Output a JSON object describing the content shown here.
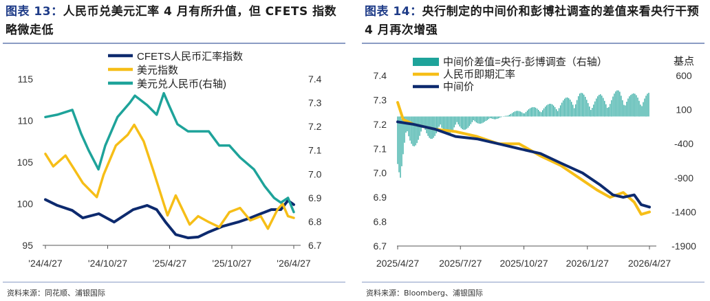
{
  "colors": {
    "navy": "#0d2a6e",
    "gold": "#f6be17",
    "teal": "#1ea39a",
    "title_blue": "#1f3c88",
    "rule": "#8a9bc4"
  },
  "left": {
    "fig_label": "图表 13：",
    "title": "人民币兑美元汇率 4 月有所升值，但 CFETS 指数略微走低",
    "source": "资料来源：同花顺、浦银国际",
    "chart_data": {
      "type": "line",
      "x_ticks": [
        "'24/4/27",
        "'24/10/27",
        "'25/4/27",
        "'25/10/27",
        "'26/4/27"
      ],
      "y_left": {
        "range": [
          95,
          115
        ],
        "ticks": [
          95,
          100,
          105,
          110,
          115
        ]
      },
      "y_right": {
        "range": [
          6.7,
          7.4
        ],
        "ticks": [
          6.7,
          6.8,
          6.9,
          7.0,
          7.1,
          7.2,
          7.3,
          7.4
        ]
      },
      "series": [
        {
          "name": "CFETS人民币汇率指数",
          "axis": "left",
          "color": "#0d2a6e",
          "x": [
            "2024-04-27",
            "2024-06-01",
            "2024-07-15",
            "2024-08-15",
            "2024-10-01",
            "2024-11-15",
            "2025-01-10",
            "2025-02-20",
            "2025-03-20",
            "2025-04-15",
            "2025-05-15",
            "2025-06-20",
            "2025-07-20",
            "2025-08-20",
            "2025-10-01",
            "2025-11-15",
            "2025-12-20",
            "2026-01-20",
            "2026-02-20",
            "2026-03-20",
            "2026-04-10",
            "2026-04-27"
          ],
          "values": [
            100.5,
            99.8,
            99.2,
            98.3,
            98.8,
            97.8,
            99.3,
            99.8,
            99.3,
            97.8,
            96.3,
            95.9,
            96.0,
            96.6,
            97.3,
            97.8,
            98.3,
            98.8,
            99.3,
            99.3,
            100.4,
            99.9
          ]
        },
        {
          "name": "美元指数",
          "axis": "left",
          "color": "#f6be17",
          "x": [
            "2024-04-27",
            "2024-05-20",
            "2024-06-25",
            "2024-07-20",
            "2024-08-15",
            "2024-09-25",
            "2024-10-15",
            "2024-11-20",
            "2024-12-25",
            "2025-01-13",
            "2025-02-10",
            "2025-03-10",
            "2025-04-10",
            "2025-04-21",
            "2025-05-15",
            "2025-06-25",
            "2025-07-20",
            "2025-08-20",
            "2025-09-20",
            "2025-10-20",
            "2025-11-20",
            "2025-12-20",
            "2026-01-20",
            "2026-02-10",
            "2026-03-10",
            "2026-03-25",
            "2026-04-10",
            "2026-04-27"
          ],
          "values": [
            106.0,
            104.5,
            105.8,
            104.2,
            102.5,
            100.8,
            103.5,
            107.0,
            108.3,
            109.5,
            107.5,
            104.0,
            100.0,
            98.6,
            101.0,
            97.5,
            98.5,
            97.8,
            97.2,
            99.0,
            99.5,
            98.0,
            98.5,
            97.0,
            99.3,
            100.0,
            98.5,
            98.3
          ]
        },
        {
          "name": "美元兑人民币(右轴)",
          "axis": "right",
          "color": "#1ea39a",
          "x": [
            "2024-04-27",
            "2024-06-01",
            "2024-07-15",
            "2024-08-10",
            "2024-09-01",
            "2024-09-30",
            "2024-10-20",
            "2024-11-25",
            "2024-12-31",
            "2025-01-15",
            "2025-02-20",
            "2025-03-20",
            "2025-04-10",
            "2025-04-25",
            "2025-05-20",
            "2025-06-20",
            "2025-07-20",
            "2025-08-20",
            "2025-09-20",
            "2025-10-20",
            "2025-11-20",
            "2025-12-31",
            "2026-01-31",
            "2026-02-28",
            "2026-03-20",
            "2026-04-10",
            "2026-04-27"
          ],
          "values": [
            7.24,
            7.25,
            7.27,
            7.17,
            7.1,
            7.02,
            7.12,
            7.24,
            7.3,
            7.33,
            7.29,
            7.25,
            7.34,
            7.29,
            7.21,
            7.18,
            7.18,
            7.18,
            7.12,
            7.12,
            7.07,
            7.02,
            6.95,
            6.9,
            6.88,
            6.9,
            6.84
          ]
        }
      ]
    }
  },
  "right": {
    "fig_label": "图表 14：",
    "title": "央行制定的中间价和彭博社调查的差值来看央行干预 4 月再次增强",
    "source": "资料来源：Bloomberg、浦银国际",
    "chart_data": {
      "type": "line",
      "x_ticks": [
        "2025/4/27",
        "2025/7/27",
        "2025/10/27",
        "2026/1/27",
        "2026/4/27"
      ],
      "y_left": {
        "range": [
          6.7,
          7.4
        ],
        "ticks": [
          6.7,
          6.8,
          6.9,
          7.0,
          7.1,
          7.2,
          7.3,
          7.4
        ]
      },
      "y_right": {
        "label": "基点",
        "range": [
          -1900,
          600
        ],
        "ticks": [
          -1900,
          -1400,
          -900,
          -400,
          100,
          600
        ]
      },
      "series": [
        {
          "name": "中间价差值=央行-彭博调查（右轴）",
          "type": "bar",
          "axis": "right",
          "color": "#1ea39a",
          "x": [
            "2025-04-27",
            "2025-05-01",
            "2025-05-10",
            "2025-05-20",
            "2025-06-01",
            "2025-06-15",
            "2025-07-01",
            "2025-07-15",
            "2025-08-01",
            "2025-08-15",
            "2025-09-01",
            "2025-09-15",
            "2025-10-01",
            "2025-10-15",
            "2025-11-01",
            "2025-11-15",
            "2025-12-01",
            "2025-12-15",
            "2026-01-01",
            "2026-01-15",
            "2026-02-01",
            "2026-02-15",
            "2026-03-01",
            "2026-03-15",
            "2026-04-01",
            "2026-04-15",
            "2026-04-27"
          ],
          "values": [
            -700,
            -950,
            -500,
            -450,
            -350,
            -330,
            -300,
            -250,
            -200,
            -150,
            -80,
            -50,
            20,
            80,
            120,
            150,
            180,
            220,
            300,
            380,
            250,
            330,
            300,
            420,
            330,
            380,
            350
          ]
        },
        {
          "name": "人民币即期汇率",
          "type": "line",
          "axis": "left",
          "color": "#f6be17",
          "x": [
            "2025-04-27",
            "2025-05-05",
            "2025-05-20",
            "2025-06-20",
            "2025-07-20",
            "2025-08-20",
            "2025-09-20",
            "2025-10-20",
            "2025-11-20",
            "2025-12-20",
            "2026-01-15",
            "2026-02-10",
            "2026-03-01",
            "2026-03-20",
            "2026-04-05",
            "2026-04-15",
            "2026-04-27"
          ],
          "values": [
            7.29,
            7.22,
            7.2,
            7.18,
            7.17,
            7.15,
            7.12,
            7.12,
            7.07,
            7.03,
            6.98,
            6.93,
            6.9,
            6.92,
            6.88,
            6.83,
            6.84
          ]
        },
        {
          "name": "中间价",
          "type": "line",
          "axis": "left",
          "color": "#0d2a6e",
          "x": [
            "2025-04-27",
            "2025-05-20",
            "2025-06-20",
            "2025-07-20",
            "2025-08-20",
            "2025-09-20",
            "2025-10-20",
            "2025-11-20",
            "2025-12-20",
            "2026-01-20",
            "2026-02-15",
            "2026-03-05",
            "2026-03-20",
            "2026-04-05",
            "2026-04-15",
            "2026-04-27"
          ],
          "values": [
            7.21,
            7.2,
            7.18,
            7.15,
            7.14,
            7.12,
            7.1,
            7.08,
            7.04,
            7.0,
            6.95,
            6.91,
            6.9,
            6.91,
            6.87,
            6.86
          ]
        }
      ]
    }
  }
}
